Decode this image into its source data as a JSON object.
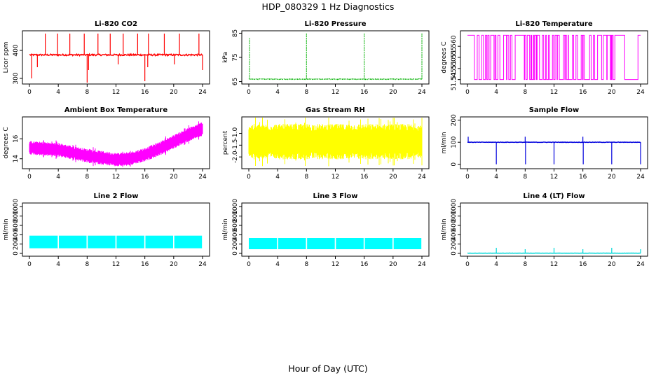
{
  "title": "HDP_080329  1 Hz Diagnostics",
  "xlabel": "Hour of Day (UTC)",
  "chart_data": [
    {
      "type": "line",
      "title": "Li-820 CO2",
      "ylabel": "Licor ppm",
      "color": "#ff0000",
      "xlim": [
        0,
        24
      ],
      "xticks": [
        "0",
        "4",
        "8",
        "12",
        "16",
        "20",
        "24"
      ],
      "ylim": [
        280,
        470
      ],
      "yticks": [
        {
          "v": 300,
          "label": "300"
        },
        {
          "v": 400,
          "label": "400"
        }
      ],
      "baseline": 384,
      "noise": 3,
      "spikes": [
        {
          "x": 2.2,
          "y": 460
        },
        {
          "x": 3.9,
          "y": 460
        },
        {
          "x": 5.6,
          "y": 460
        },
        {
          "x": 7.6,
          "y": 460
        },
        {
          "x": 9.5,
          "y": 460
        },
        {
          "x": 11.2,
          "y": 460
        },
        {
          "x": 13.0,
          "y": 460
        },
        {
          "x": 15.0,
          "y": 460
        },
        {
          "x": 16.5,
          "y": 460
        },
        {
          "x": 18.7,
          "y": 460
        },
        {
          "x": 20.8,
          "y": 460
        },
        {
          "x": 23.5,
          "y": 460
        },
        {
          "x": 0.3,
          "y": 300
        },
        {
          "x": 1.1,
          "y": 340
        },
        {
          "x": 8.0,
          "y": 285
        },
        {
          "x": 8.2,
          "y": 330
        },
        {
          "x": 12.3,
          "y": 350
        },
        {
          "x": 16.0,
          "y": 290
        },
        {
          "x": 16.4,
          "y": 340
        },
        {
          "x": 20.1,
          "y": 350
        },
        {
          "x": 24.0,
          "y": 330
        }
      ]
    },
    {
      "type": "line",
      "title": "Li-820 Pressure",
      "ylabel": "kPa",
      "color": "#00b000",
      "style": "dotted",
      "xlim": [
        0,
        24
      ],
      "xticks": [
        "0",
        "4",
        "8",
        "12",
        "16",
        "20",
        "24"
      ],
      "ylim": [
        64,
        86
      ],
      "yticks": [
        {
          "v": 65,
          "label": "65"
        },
        {
          "v": 75,
          "label": "75"
        },
        {
          "v": 85,
          "label": "85"
        }
      ],
      "baseline": 66,
      "noise": 0.1,
      "spikes": [
        {
          "x": 0.1,
          "y": 83
        },
        {
          "x": 8.0,
          "y": 85
        },
        {
          "x": 16.0,
          "y": 85
        },
        {
          "x": 24.0,
          "y": 85
        }
      ]
    },
    {
      "type": "line",
      "title": "Li-820 Temperature",
      "ylabel": "degrees C",
      "color": "#ff00ff",
      "xlim": [
        0,
        24
      ],
      "xticks": [
        "0",
        "4",
        "8",
        "12",
        "16",
        "20",
        "24"
      ],
      "ylim": [
        51.543,
        51.567
      ],
      "yticks": [
        {
          "v": 51.545,
          "label": "51.545"
        },
        {
          "v": 51.55,
          "label": "51.550"
        },
        {
          "v": 51.555,
          "label": "51.555"
        },
        {
          "v": 51.56,
          "label": "51.560"
        }
      ],
      "levels": [
        51.565,
        51.545
      ],
      "level_switch": 23.5
    },
    {
      "type": "area",
      "title": "Ambient Box Temperature",
      "ylabel": "degrees C",
      "color": "#ff00ff",
      "xlim": [
        0,
        24
      ],
      "xticks": [
        "0",
        "4",
        "8",
        "12",
        "16",
        "20",
        "24"
      ],
      "ylim": [
        13,
        18.2
      ],
      "yticks": [
        {
          "v": 14,
          "label": "14"
        },
        {
          "v": 16,
          "label": "16"
        }
      ],
      "center": [
        {
          "x": 0,
          "y": 15.1
        },
        {
          "x": 4,
          "y": 14.9
        },
        {
          "x": 8,
          "y": 14.3
        },
        {
          "x": 12,
          "y": 13.9
        },
        {
          "x": 14,
          "y": 14.0
        },
        {
          "x": 16,
          "y": 14.4
        },
        {
          "x": 18,
          "y": 15.0
        },
        {
          "x": 20,
          "y": 15.7
        },
        {
          "x": 22,
          "y": 16.4
        },
        {
          "x": 24,
          "y": 17.0
        }
      ],
      "halfwidth": 0.55
    },
    {
      "type": "area",
      "title": "Gas Stream RH",
      "ylabel": "percent",
      "color": "#ffff00",
      "xlim": [
        0,
        24
      ],
      "xticks": [
        "0",
        "4",
        "8",
        "12",
        "16",
        "20",
        "24"
      ],
      "ylim": [
        -2.5,
        -0.3
      ],
      "yticks": [
        {
          "v": -2.0,
          "label": "-2.0"
        },
        {
          "v": -1.5,
          "label": "-1.5"
        },
        {
          "v": -1.0,
          "label": "-1.0"
        }
      ],
      "center": [
        {
          "x": 0,
          "y": -1.35
        },
        {
          "x": 24,
          "y": -1.35
        }
      ],
      "halfwidth": 0.6
    },
    {
      "type": "line",
      "title": "Sample Flow",
      "ylabel": "ml/min",
      "color": "#0000dd",
      "xlim": [
        0,
        24
      ],
      "xticks": [
        "0",
        "4",
        "8",
        "12",
        "16",
        "20",
        "24"
      ],
      "ylim": [
        -20,
        215
      ],
      "yticks": [
        {
          "v": 0,
          "label": "0"
        },
        {
          "v": 100,
          "label": "100"
        },
        {
          "v": 200,
          "label": "200"
        }
      ],
      "baseline": 100,
      "noise": 1,
      "spikes": [
        {
          "x": 0.1,
          "y": 125
        },
        {
          "x": 4.0,
          "y": 0
        },
        {
          "x": 8.0,
          "y": 125
        },
        {
          "x": 8.05,
          "y": 0
        },
        {
          "x": 12.0,
          "y": 0
        },
        {
          "x": 16.0,
          "y": 125
        },
        {
          "x": 16.05,
          "y": 0
        },
        {
          "x": 20.0,
          "y": 0
        },
        {
          "x": 24.0,
          "y": 0
        }
      ]
    },
    {
      "type": "area",
      "title": "Line 2 Flow",
      "ylabel": "ml/min",
      "color": "#00ffff",
      "xlim": [
        0,
        24
      ],
      "xticks": [
        "0",
        "4",
        "8",
        "12",
        "16",
        "20",
        "24"
      ],
      "ylim": [
        -60,
        1080
      ],
      "yticks": [
        {
          "v": 0,
          "label": "0"
        },
        {
          "v": 200,
          "label": "200"
        },
        {
          "v": 400,
          "label": "400"
        },
        {
          "v": 600,
          "label": "600"
        },
        {
          "v": 800,
          "label": "800"
        },
        {
          "v": 1000,
          "label": "1000"
        }
      ],
      "band": [
        110,
        380
      ],
      "gaps": [
        4,
        8,
        12,
        16,
        20
      ]
    },
    {
      "type": "area",
      "title": "Line 3 Flow",
      "ylabel": "ml/min",
      "color": "#00ffff",
      "xlim": [
        0,
        24
      ],
      "xticks": [
        "0",
        "4",
        "8",
        "12",
        "16",
        "20",
        "24"
      ],
      "ylim": [
        -60,
        1080
      ],
      "yticks": [
        {
          "v": 0,
          "label": "0"
        },
        {
          "v": 200,
          "label": "200"
        },
        {
          "v": 400,
          "label": "400"
        },
        {
          "v": 600,
          "label": "600"
        },
        {
          "v": 800,
          "label": "800"
        },
        {
          "v": 1000,
          "label": "1000"
        }
      ],
      "band": [
        90,
        330
      ],
      "gaps": [
        4,
        8,
        12,
        16,
        20
      ]
    },
    {
      "type": "line",
      "title": "Line 4 (LT) Flow",
      "ylabel": "ml/min",
      "color": "#00d8d8",
      "xlim": [
        0,
        24
      ],
      "xticks": [
        "0",
        "4",
        "8",
        "12",
        "16",
        "20",
        "24"
      ],
      "ylim": [
        -60,
        1080
      ],
      "yticks": [
        {
          "v": 0,
          "label": "0"
        },
        {
          "v": 200,
          "label": "200"
        },
        {
          "v": 400,
          "label": "400"
        },
        {
          "v": 600,
          "label": "600"
        },
        {
          "v": 800,
          "label": "800"
        },
        {
          "v": 1000,
          "label": "1000"
        }
      ],
      "baseline": 5,
      "noise": 2,
      "spikes": [
        {
          "x": 4.0,
          "y": 120
        },
        {
          "x": 8.0,
          "y": 90
        },
        {
          "x": 12.0,
          "y": 120
        },
        {
          "x": 16.0,
          "y": 90
        },
        {
          "x": 20.0,
          "y": 120
        },
        {
          "x": 24.0,
          "y": 90
        }
      ]
    }
  ]
}
